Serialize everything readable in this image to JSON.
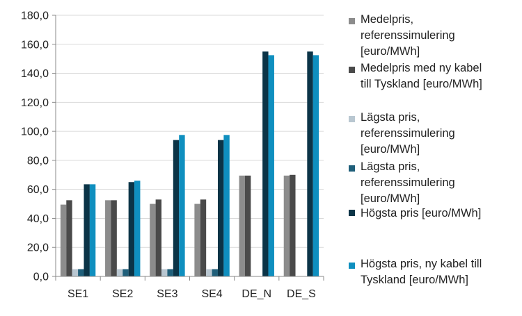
{
  "chart_data": {
    "type": "bar",
    "categories": [
      "SE1",
      "SE2",
      "SE3",
      "SE4",
      "DE_N",
      "DE_S"
    ],
    "ylim": [
      0,
      180
    ],
    "yticks": [
      "0,0",
      "20,0",
      "40,0",
      "60,0",
      "80,0",
      "100,0",
      "120,0",
      "140,0",
      "160,0",
      "180,0"
    ],
    "grid": "horizontal",
    "legend_position": "right",
    "series": [
      {
        "name": "Medelpris, referenssimulering [euro/MWh]",
        "legend_lines": [
          "Medelpris,",
          "referenssimulering",
          "[euro/MWh]"
        ],
        "color": "#8c8c8c",
        "values": [
          49.5,
          52.5,
          50.0,
          50.0,
          69.5,
          69.5
        ]
      },
      {
        "name": "Medelpris med ny kabel till Tyskland [euro/MWh]",
        "legend_lines": [
          "Medelpris med ny kabel",
          "till Tyskland [euro/MWh]"
        ],
        "color": "#4a4a4a",
        "values": [
          52.5,
          52.5,
          53.0,
          53.0,
          69.5,
          70.0
        ]
      },
      {
        "name": "Lägsta pris, referenssimulering [euro/MWh]",
        "legend_lines": [
          "Lägsta pris,",
          "referenssimulering",
          "[euro/MWh]"
        ],
        "color": "#b9c7d1",
        "values": [
          5.0,
          5.0,
          5.0,
          5.0,
          0,
          0
        ]
      },
      {
        "name": "Lägsta pris, referenssimulering [euro/MWh]",
        "legend_lines": [
          "Lägsta pris,",
          "referenssimulering",
          "[euro/MWh]"
        ],
        "color": "#1f5f7a",
        "values": [
          5.0,
          5.0,
          5.0,
          5.0,
          0,
          0
        ]
      },
      {
        "name": "Högsta pris [euro/MWh]",
        "legend_lines": [
          "Högsta pris [euro/MWh]"
        ],
        "color": "#0b3447",
        "values": [
          63.5,
          65.0,
          94.0,
          94.0,
          155.0,
          155.0
        ]
      },
      {
        "name": "Högsta pris, ny kabel till Tyskland [euro/MWh]",
        "legend_lines": [
          "Högsta pris, ny kabel till",
          "Tyskland [euro/MWh]"
        ],
        "color": "#0f8fbf",
        "values": [
          63.5,
          66.0,
          97.5,
          97.5,
          152.5,
          152.5
        ]
      }
    ]
  }
}
